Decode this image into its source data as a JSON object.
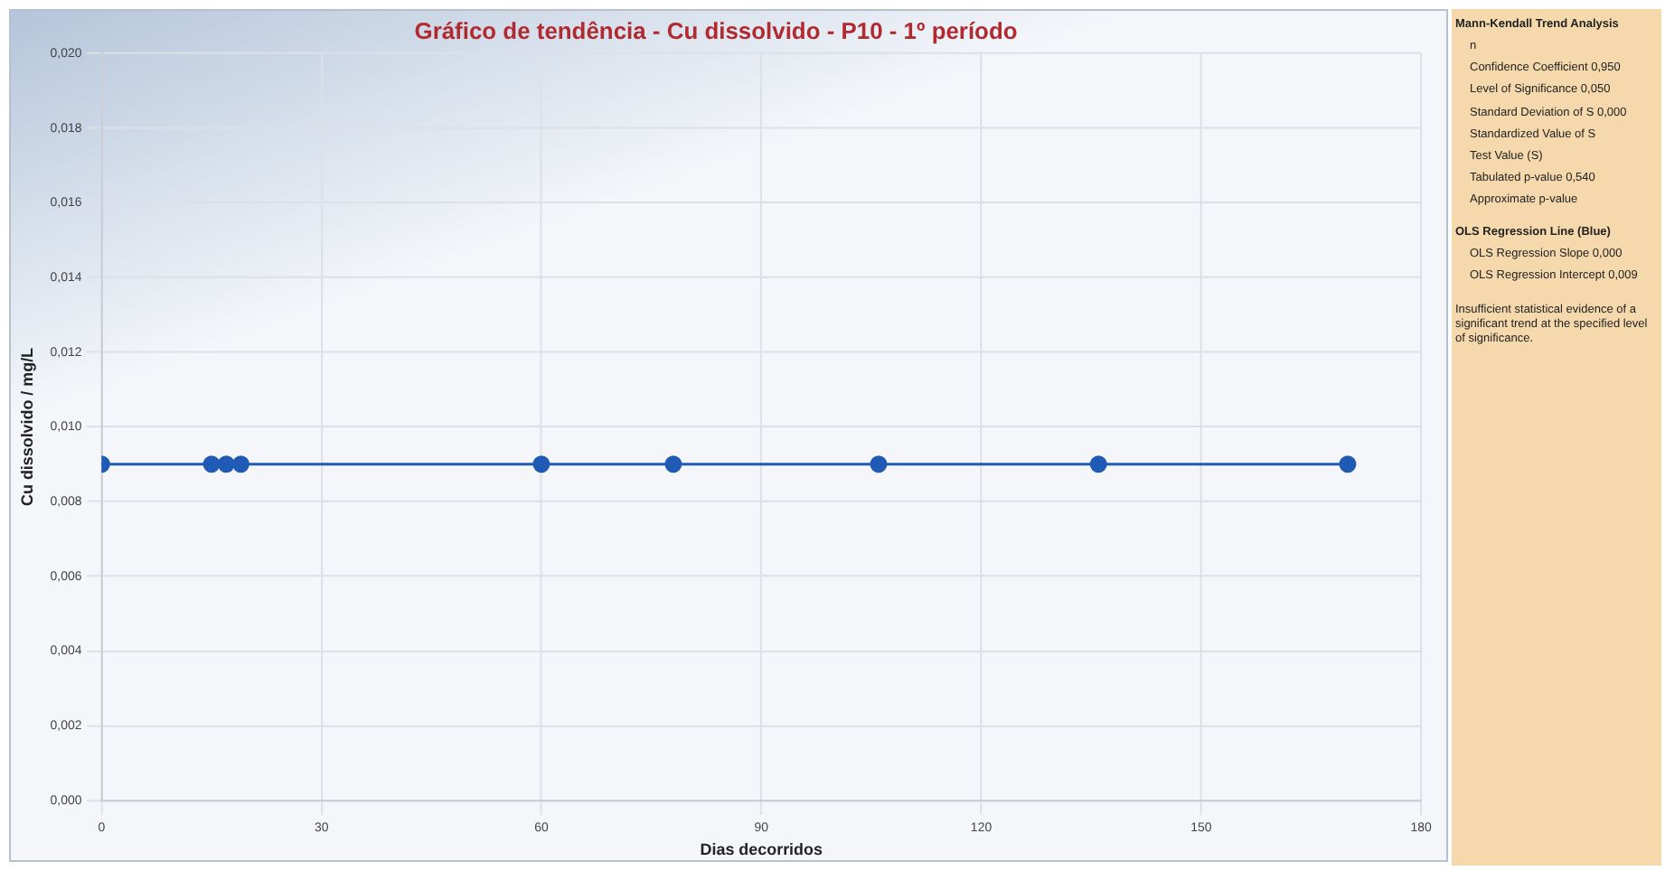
{
  "chart_data": {
    "type": "line",
    "title": "Gráfico de tendência - Cu dissolvido - P10 - 1º período",
    "xlabel": "Dias decorridos",
    "ylabel": "Cu dissolvido / mg/L",
    "x": [
      0,
      15,
      17,
      19,
      60,
      78,
      106,
      136,
      170
    ],
    "series": [
      {
        "color": "#1f5bb5",
        "values": [
          0.009,
          0.009,
          0.009,
          0.009,
          0.009,
          0.009,
          0.009,
          0.009,
          0.009
        ]
      }
    ],
    "xlim": [
      0,
      180
    ],
    "xticks": [
      0,
      30,
      60,
      90,
      120,
      150,
      180
    ],
    "ylim": [
      0,
      0.02
    ],
    "yticks": [
      {
        "value": 0,
        "label": "0,000"
      },
      {
        "value": 0.002,
        "label": "0,002"
      },
      {
        "value": 0.004,
        "label": "0,004"
      },
      {
        "value": 0.006,
        "label": "0,006"
      },
      {
        "value": 0.008,
        "label": "0,008"
      },
      {
        "value": 0.01,
        "label": "0,010"
      },
      {
        "value": 0.012,
        "label": "0,012"
      },
      {
        "value": 0.014,
        "label": "0,014"
      },
      {
        "value": 0.016,
        "label": "0,016"
      },
      {
        "value": 0.018,
        "label": "0,018"
      },
      {
        "value": 0.02,
        "label": "0,020"
      }
    ],
    "grid": true,
    "marker": "circle",
    "line_style": "solid",
    "legend": false,
    "annotations": [
      "Mann-Kendall Trend Analysis",
      "n",
      "Confidence Coefficient 0,950",
      "Level of Significance 0,050",
      "Standard Deviation of S 0,000",
      "Standardized Value of S",
      "Test Value (S)",
      "Tabulated p-value 0,540",
      "Approximate p-value",
      "OLS Regression Line (Blue)",
      "OLS Regression Slope 0,000",
      "OLS Regression Intercept 0,009",
      "Insufficient statistical evidence of a significant trend at the specified level of significance."
    ]
  }
}
